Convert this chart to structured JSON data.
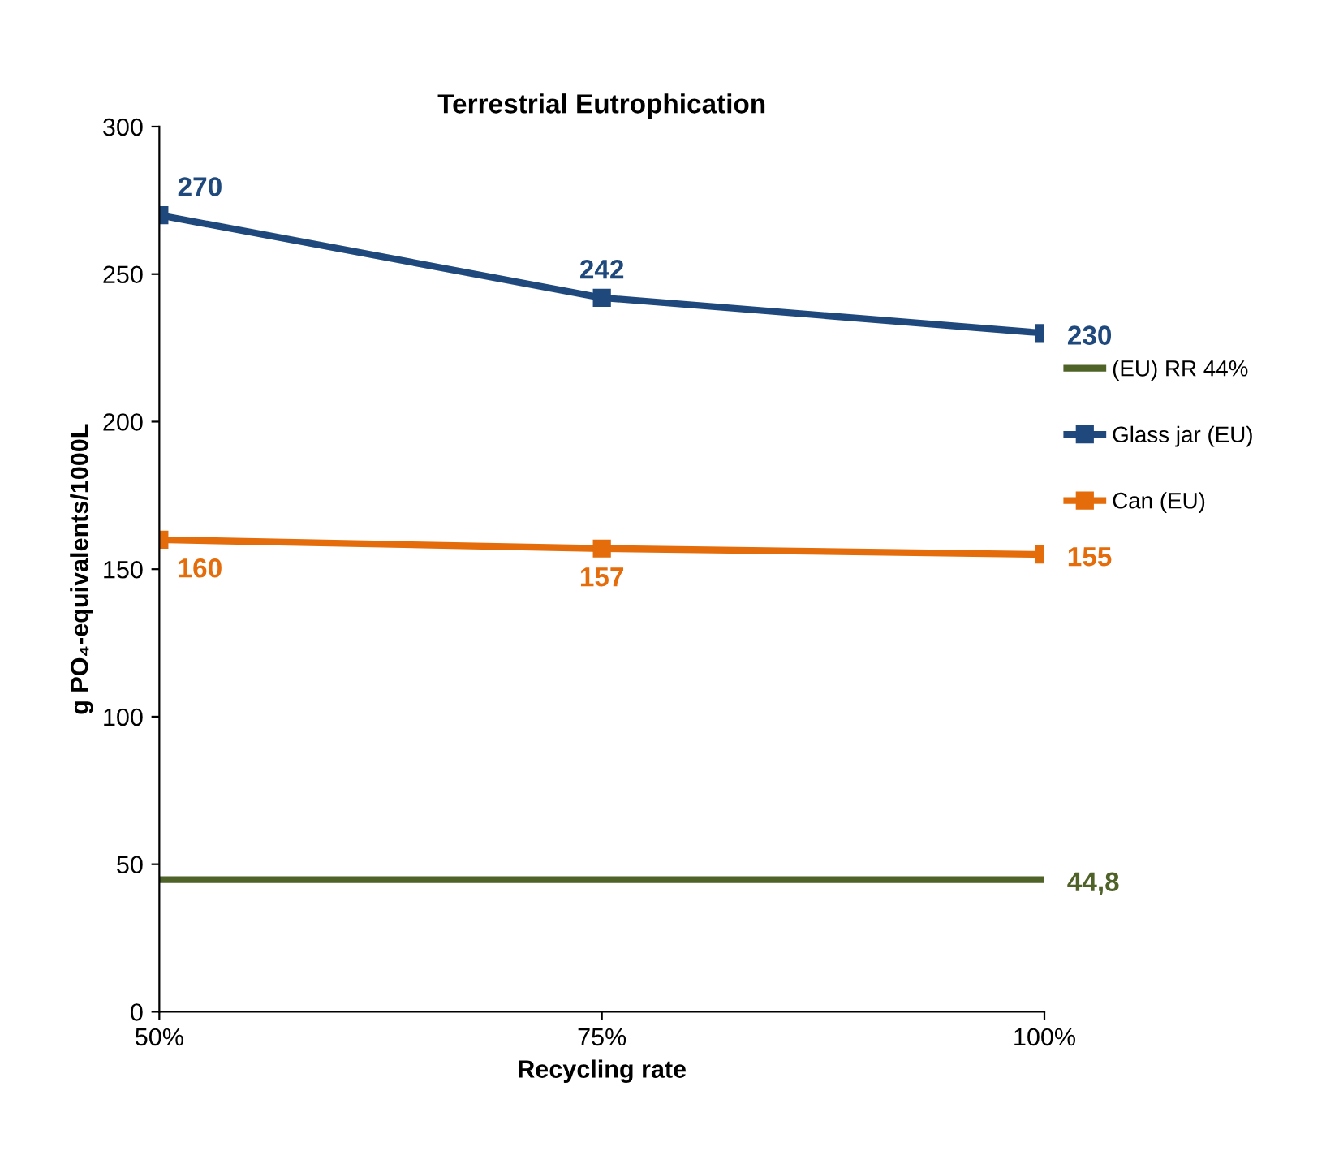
{
  "chart_data": {
    "type": "line",
    "title": "Terrestrial Eutrophication",
    "xlabel": "Recycling rate",
    "ylabel": "g PO₄-equivalents/1000L",
    "categories": [
      "50%",
      "75%",
      "100%"
    ],
    "series": [
      {
        "name": "(EU) RR 44%",
        "color": "#4f6228",
        "values": [
          44.8,
          44.8,
          44.8
        ],
        "marker": "none",
        "value_labels": [
          null,
          null,
          "44,8"
        ]
      },
      {
        "name": "Glass jar (EU)",
        "color": "#1f497d",
        "values": [
          270,
          242,
          230
        ],
        "marker": "square",
        "value_labels": [
          "270",
          "242",
          "230"
        ]
      },
      {
        "name": "Can (EU)",
        "color": "#e46c0a",
        "values": [
          160,
          157,
          155
        ],
        "marker": "square",
        "value_labels": [
          "160",
          "157",
          "155"
        ]
      }
    ],
    "ylim": [
      0,
      300
    ],
    "yticks": [
      0,
      50,
      100,
      150,
      200,
      250,
      300
    ],
    "grid": false,
    "legend": "right",
    "line_style": "solid"
  }
}
